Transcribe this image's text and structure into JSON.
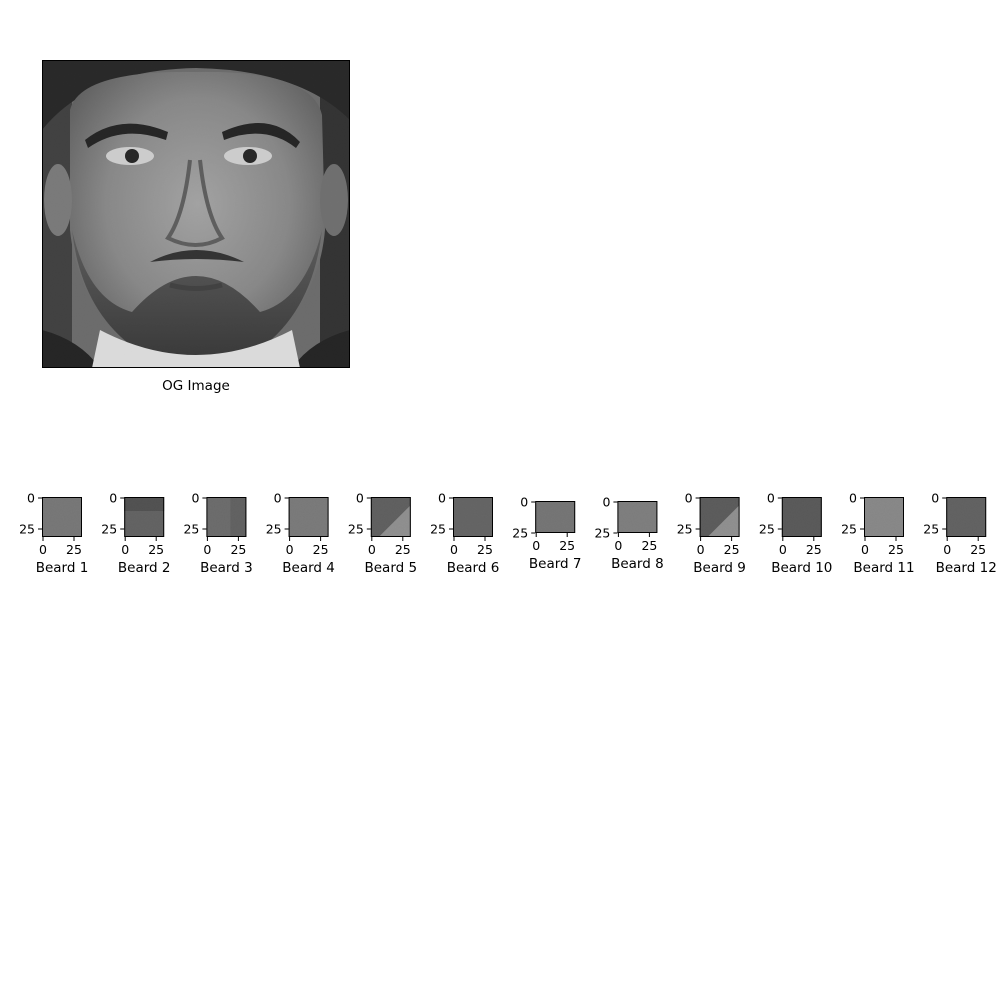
{
  "main_image": {
    "caption": "OG Image",
    "icon": "face-portrait-image"
  },
  "tiles": {
    "x_ticks": [
      "0",
      "25"
    ],
    "y_ticks": [
      "0",
      "25"
    ],
    "items": [
      {
        "label": "Beard 1",
        "tone": "#6e6e6e",
        "texture": "speckle"
      },
      {
        "label": "Beard 2",
        "tone": "#4a4a4a",
        "texture": "dark-top"
      },
      {
        "label": "Beard 3",
        "tone": "#5a5a5a",
        "texture": "shadow"
      },
      {
        "label": "Beard 4",
        "tone": "#747474",
        "texture": "smooth"
      },
      {
        "label": "Beard 5",
        "tone": "#444444",
        "texture": "diagonal"
      },
      {
        "label": "Beard 6",
        "tone": "#4c4c4c",
        "texture": "smooth"
      },
      {
        "label": "Beard 7",
        "tone": "#6a6a6a",
        "texture": "speckle"
      },
      {
        "label": "Beard 8",
        "tone": "#7a7a7a",
        "texture": "speckle"
      },
      {
        "label": "Beard 9",
        "tone": "#3c3c3c",
        "texture": "diagonal"
      },
      {
        "label": "Beard 10",
        "tone": "#3a3a3a",
        "texture": "smooth"
      },
      {
        "label": "Beard 11",
        "tone": "#8c8c8c",
        "texture": "speckle"
      },
      {
        "label": "Beard 12",
        "tone": "#484848",
        "texture": "smooth"
      }
    ]
  }
}
